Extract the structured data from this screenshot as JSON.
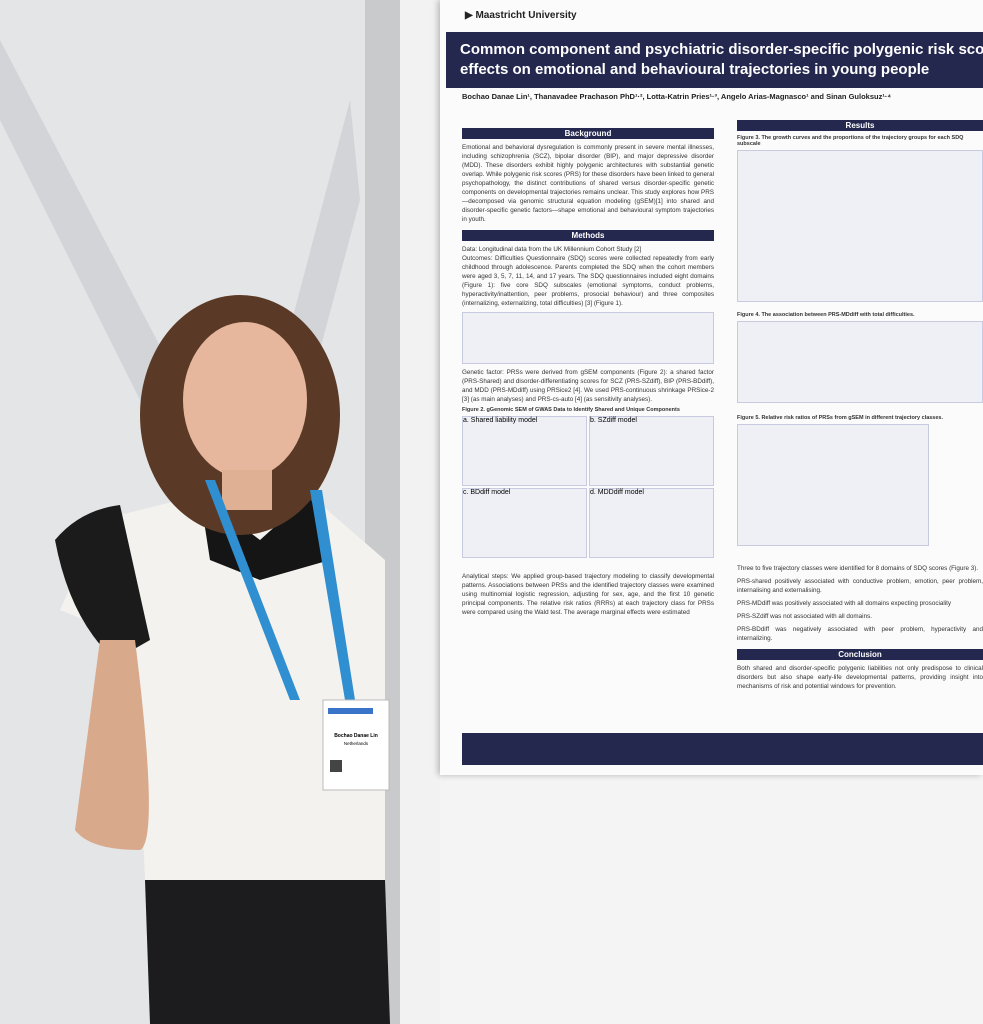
{
  "poster": {
    "institution": "Maastricht University",
    "title": [
      "Common component and psychiatric disorder-specific polygenic risk sco",
      "effects on emotional and behavioural trajectories in young people"
    ],
    "authors": "Bochao Danae Lin¹, Thanavadee Prachason PhD¹·², Lotta-Katrin Pries¹·³, Angelo Arias-Magnasco¹ and Sinan Guloksuz¹·⁴",
    "background": {
      "heading": "Background",
      "text": "Emotional and behavioral dysregulation is commonly present in severe mental illnesses, including schizophrenia (SCZ), bipolar disorder (BIP), and major depressive disorder (MDD). These disorders exhibit highly polygenic architectures with substantial genetic overlap. While polygenic risk scores (PRS) for these disorders have been linked to general psychopathology, the distinct contributions of shared versus disorder-specific genetic components on developmental trajectories remains unclear. This study explores how PRS—decomposed via genomic structural equation modeling (gSEM)[1] into shared and disorder-specific genetic factors—shape emotional and behavioural symptom trajectories in youth."
    },
    "methods": {
      "heading": "Methods",
      "bullets": [
        "Data: Longitudinal data from the UK Millennium Cohort Study [2]",
        "Outcomes: Difficulties Questionnaire (SDQ) scores were collected repeatedly from early childhood through adolescence. Parents completed the SDQ when the cohort members were aged 3, 5, 7, 11, 14, and 17 years. The SDQ questionnaires included eight domains (Figure 1): five core SDQ subscales (emotional symptoms, conduct problems, hyperactivity/inattention, peer problems, prosocial behaviour) and three composites (internalizing, externalizing, total difficulties) [3] (Figure 1).",
        "Genetic factor: PRSs were derived from gSEM components (Figure 2): a shared factor (PRS-Shared) and disorder-differentiating scores for SCZ (PRS-SZdiff), BIP (PRS-BDdiff), and MDD (PRS-MDdiff) using PRSice2 [4]. We used PRS-continuous shrinkage PRSice-2 [3] (as main analyses) and PRS-cs-auto [4] (as sensitivity analyses).",
        "Analytical steps: We applied group-based trajectory modeling to classify developmental patterns. Associations between PRSs and the identified trajectory classes were examined using multinomial logistic regression, adjusting for sex, age, and the first 10 genetic principal components. The relative risk ratios (RRRs) at each trajectory class for PRSs were compared using the Wald test. The average marginal effects were estimated"
      ]
    },
    "figure2": {
      "caption": "Figure 2. gGenomic SEM of GWAS Data to Identify Shared and Unique Components",
      "panels": [
        "a. Shared liability model",
        "b. SZdiff model",
        "c. BDdiff model",
        "d. MDDdiff model"
      ]
    },
    "results": {
      "heading": "Results",
      "figure3": "Figure 3. The growth curves and the proportions of the trajectory groups for each SDQ subscale",
      "figure4": "Figure 4. The association between PRS-MDdiff with total difficulties.",
      "figure5": "Figure 5. Relative risk ratios of PRSs from gSEM in different trajectory classes.",
      "bullets": [
        "Three to five trajectory classes were identified for 8 domains of SDQ scores (Figure 3).",
        "PRS-shared positively associated with conductive problem, emotion, peer problem, internalising and externalising.",
        "PRS-MDdiff was positively associated with all domains expecting prosociality",
        "PRS-SZdiff was not associated with all domains.",
        "PRS-BDdiff was negatively associated with peer problem, hyperactivity and internalizing."
      ]
    },
    "conclusion": {
      "heading": "Conclusion",
      "text": "Both shared and disorder-specific polygenic liabilities not only predispose to clinical disorders but also shape early-life developmental patterns, providing insight into mechanisms of risk and potential windows for prevention."
    }
  },
  "badge": {
    "name": "Bochao Danae Lin",
    "country": "Netherlands"
  }
}
